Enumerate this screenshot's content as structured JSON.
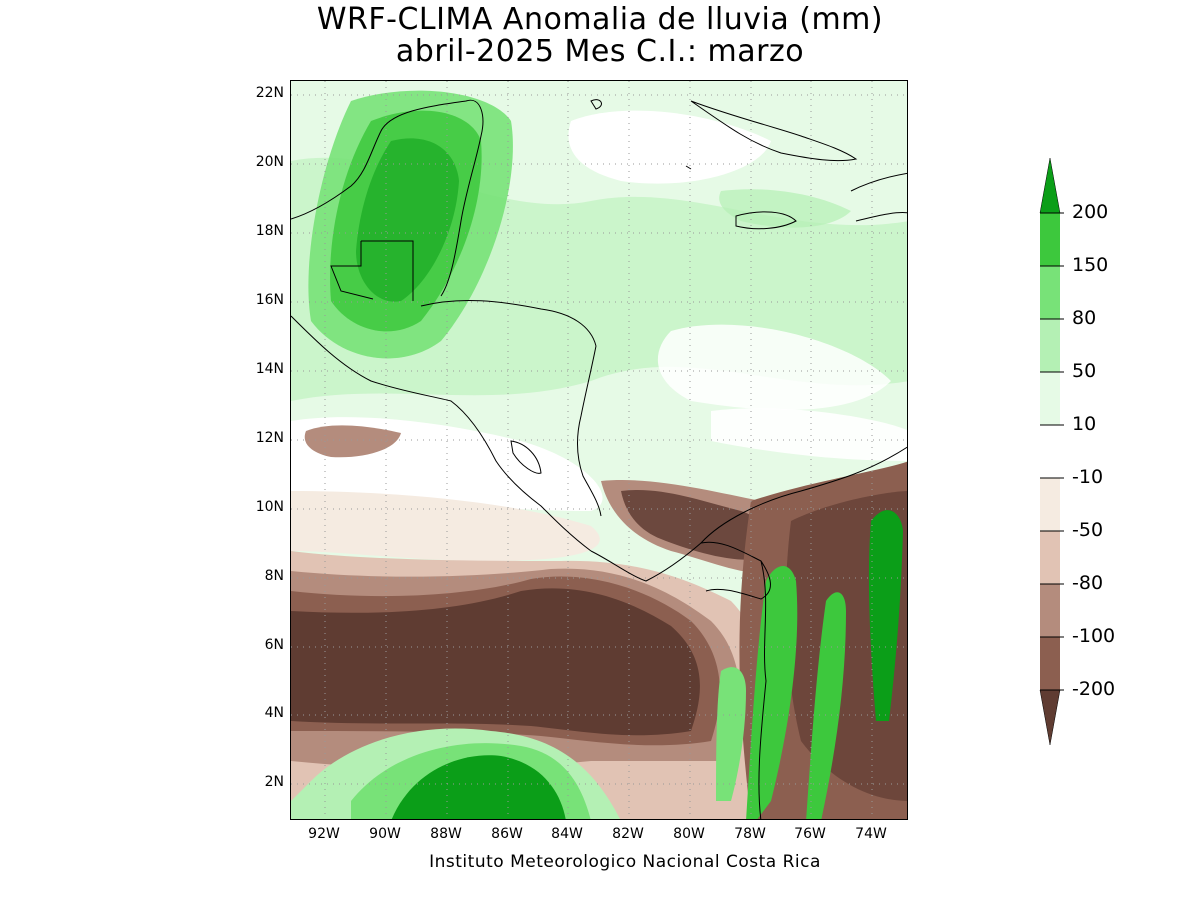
{
  "title": {
    "line1": "WRF-CLIMA Anomalia de lluvia (mm)",
    "line2": "abril-2025 Mes C.I.: marzo"
  },
  "credit": "Instituto Meteorologico Nacional Costa Rica",
  "map": {
    "lat_ticks": [
      "22N",
      "20N",
      "18N",
      "16N",
      "14N",
      "12N",
      "10N",
      "8N",
      "6N",
      "4N",
      "2N"
    ],
    "lon_ticks": [
      "92W",
      "90W",
      "88W",
      "86W",
      "84W",
      "82W",
      "80W",
      "78W",
      "76W",
      "74W"
    ],
    "lat_values": [
      22,
      20,
      18,
      16,
      14,
      12,
      10,
      8,
      6,
      4,
      2
    ],
    "lon_values": [
      -92,
      -90,
      -88,
      -86,
      -84,
      -82,
      -80,
      -78,
      -76,
      -74
    ],
    "lat_range": [
      1,
      22.4
    ],
    "lon_range": [
      -93,
      -72.6
    ]
  },
  "colorbar": {
    "labels": [
      "200",
      "150",
      "80",
      "50",
      "10",
      "-10",
      "-50",
      "-80",
      "-100",
      "-200"
    ],
    "colors": [
      "#0b9e18",
      "#3dc83d",
      "#78e278",
      "#b4f0b4",
      "#e6fae6",
      "#ffffff",
      "#f5ebe1",
      "#e1c3b4",
      "#b48c7d",
      "#8c5f50",
      "#5f3c32"
    ]
  }
}
